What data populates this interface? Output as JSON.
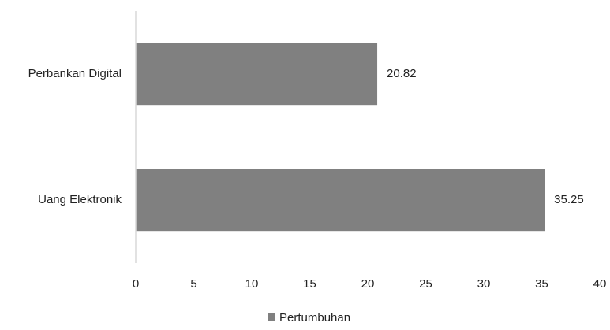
{
  "chart_data": {
    "type": "bar",
    "orientation": "horizontal",
    "categories": [
      "Perbankan Digital",
      "Uang Elektronik"
    ],
    "series": [
      {
        "name": "Pertumbuhan",
        "values": [
          20.82,
          35.25
        ],
        "color": "#808080"
      }
    ],
    "data_labels": [
      "20.82",
      "35.25"
    ],
    "xlim": [
      0,
      40
    ],
    "x_ticks": [
      0,
      5,
      10,
      15,
      20,
      25,
      30,
      35,
      40
    ],
    "grid": false,
    "legend_position": "bottom",
    "axis_color": "#d9d9d9"
  }
}
